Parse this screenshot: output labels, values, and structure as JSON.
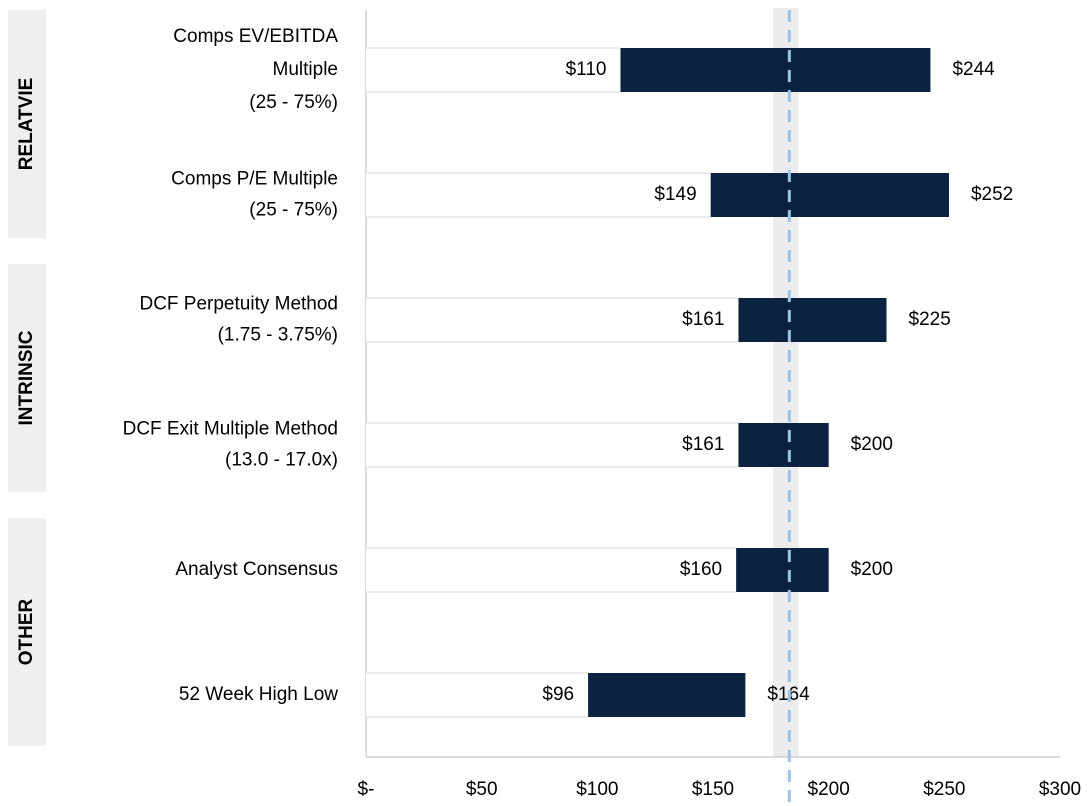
{
  "chart_data": {
    "type": "range_bar",
    "categories": [
      [
        "Comps EV/EBITDA",
        "Multiple",
        "(25 - 75%)"
      ],
      [
        "Comps P/E Multiple",
        "(25 - 75%)"
      ],
      [
        "DCF Perpetuity Method",
        "(1.75 - 3.75%)"
      ],
      [
        "DCF Exit Multiple Method",
        "(13.0 - 17.0x)"
      ],
      [
        "Analyst Consensus"
      ],
      [
        "52 Week High Low"
      ]
    ],
    "groups": [
      "RELATVIE",
      "INTRINSIC",
      "OTHER"
    ],
    "low": {
      "values": [
        110,
        149,
        161,
        161,
        160,
        96
      ],
      "value_labels": [
        "$110",
        "$149",
        "$161",
        "$161",
        "$160",
        "$96"
      ]
    },
    "high": {
      "values": [
        244,
        252,
        225,
        200,
        200,
        164
      ],
      "value_labels": [
        "$244",
        "$252",
        "$225",
        "$200",
        "$200",
        "$164"
      ]
    },
    "color": "#0b2340",
    "reference_band": [
      176,
      187
    ],
    "reference_line": 183,
    "xlim": [
      0,
      300
    ],
    "xticks": [
      {
        "value": 0,
        "label": "$-"
      },
      {
        "value": 50,
        "label": "$50"
      },
      {
        "value": 100,
        "label": "$100"
      },
      {
        "value": 150,
        "label": "$150"
      },
      {
        "value": 200,
        "label": "$200"
      },
      {
        "value": 250,
        "label": "$250"
      },
      {
        "value": 300,
        "label": "$300"
      }
    ]
  }
}
